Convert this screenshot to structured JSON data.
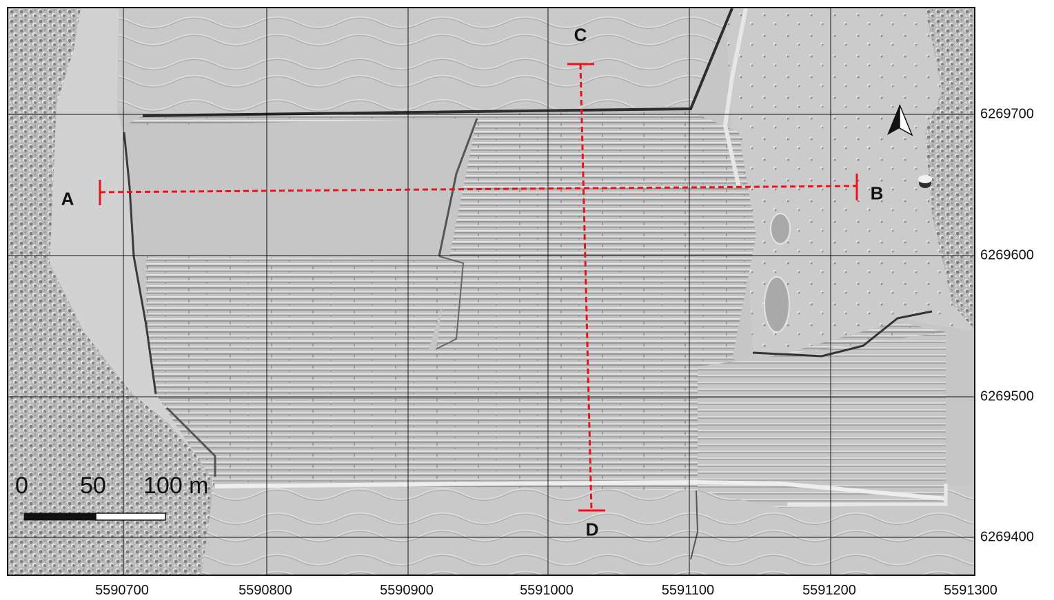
{
  "map": {
    "x_ticks": [
      "5590700",
      "5590800",
      "5590900",
      "5591000",
      "5591100",
      "5591200",
      "5591300"
    ],
    "y_ticks": [
      "6269700",
      "6269600",
      "6269500",
      "6269400"
    ],
    "sections": {
      "a": "A",
      "b": "B",
      "c": "C",
      "d": "D"
    },
    "scale_bar": {
      "label_0": "0",
      "label_50": "50",
      "label_100": "100 m"
    },
    "north_arrow_icon": "north-arrow-icon",
    "colors": {
      "profile_line": "#e8141c",
      "grid": "#111111",
      "hillshade": "#c4c4c4"
    }
  }
}
